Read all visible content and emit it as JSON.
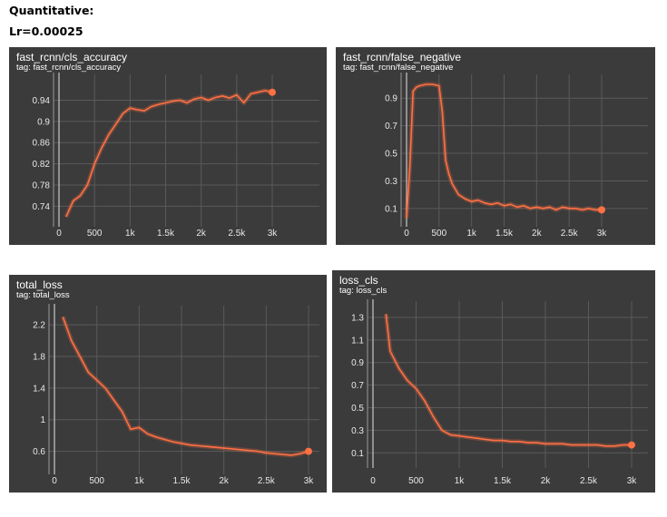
{
  "page": {
    "heading": "Quantitative:",
    "subheading": "Lr=0.00025"
  },
  "chart_data": [
    {
      "type": "line",
      "title": "fast_rcnn/cls_accuracy",
      "tag": "tag: fast_rcnn/cls_accuracy",
      "xlim": [
        0,
        3000
      ],
      "ylim": [
        0.715,
        0.975
      ],
      "x_ticks": [
        0,
        500,
        1000,
        1500,
        2000,
        2500,
        3000
      ],
      "x_tick_labels": [
        "0",
        "500",
        "1k",
        "1.5k",
        "2k",
        "2.5k",
        "3k"
      ],
      "y_ticks": [
        0.74,
        0.78,
        0.82,
        0.86,
        0.9,
        0.94
      ],
      "y_tick_labels": [
        "0.74",
        "0.78",
        "0.82",
        "0.86",
        "0.9",
        "0.94"
      ],
      "grid": true,
      "line_color": "#ff7043",
      "x": [
        100,
        200,
        300,
        400,
        500,
        600,
        700,
        800,
        900,
        1000,
        1100,
        1200,
        1300,
        1400,
        1500,
        1600,
        1700,
        1800,
        1900,
        2000,
        2100,
        2200,
        2300,
        2400,
        2500,
        2600,
        2700,
        2800,
        2900,
        3000
      ],
      "y": [
        0.72,
        0.75,
        0.76,
        0.78,
        0.82,
        0.85,
        0.875,
        0.895,
        0.915,
        0.925,
        0.922,
        0.92,
        0.928,
        0.932,
        0.935,
        0.938,
        0.94,
        0.935,
        0.942,
        0.945,
        0.94,
        0.945,
        0.948,
        0.944,
        0.95,
        0.935,
        0.952,
        0.955,
        0.958,
        0.955
      ]
    },
    {
      "type": "line",
      "title": "fast_rcnn/false_negative",
      "tag": "tag: fast_rcnn/false_negative",
      "xlim": [
        0,
        3000
      ],
      "ylim": [
        0.02,
        1.02
      ],
      "x_ticks": [
        0,
        500,
        1000,
        1500,
        2000,
        2500,
        3000
      ],
      "x_tick_labels": [
        "0",
        "500",
        "1k",
        "1.5k",
        "2k",
        "2.5k",
        "3k"
      ],
      "y_ticks": [
        0.1,
        0.3,
        0.5,
        0.7,
        0.9
      ],
      "y_tick_labels": [
        "0.1",
        "0.3",
        "0.5",
        "0.7",
        "0.9"
      ],
      "grid": true,
      "line_color": "#ff7043",
      "x": [
        0,
        50,
        100,
        150,
        200,
        300,
        400,
        500,
        550,
        600,
        650,
        700,
        800,
        900,
        1000,
        1100,
        1200,
        1300,
        1400,
        1500,
        1600,
        1700,
        1800,
        1900,
        2000,
        2100,
        2200,
        2300,
        2400,
        2500,
        2600,
        2700,
        2800,
        2900,
        3000
      ],
      "y": [
        0.03,
        0.4,
        0.95,
        0.98,
        0.99,
        1.0,
        1.0,
        0.99,
        0.8,
        0.45,
        0.35,
        0.28,
        0.2,
        0.17,
        0.15,
        0.16,
        0.14,
        0.13,
        0.14,
        0.12,
        0.13,
        0.11,
        0.12,
        0.1,
        0.11,
        0.1,
        0.11,
        0.09,
        0.11,
        0.1,
        0.1,
        0.09,
        0.1,
        0.09,
        0.09
      ]
    },
    {
      "type": "line",
      "title": "total_loss",
      "tag": "tag: total_loss",
      "xlim": [
        0,
        3000
      ],
      "ylim": [
        0.4,
        2.35
      ],
      "x_ticks": [
        0,
        500,
        1000,
        1500,
        2000,
        2500,
        3000
      ],
      "x_tick_labels": [
        "0",
        "500",
        "1k",
        "1.5k",
        "2k",
        "2.5k",
        "3k"
      ],
      "y_ticks": [
        0.6,
        1,
        1.4,
        1.8,
        2.2
      ],
      "y_tick_labels": [
        "0.6",
        "1",
        "1.4",
        "1.8",
        "2.2"
      ],
      "grid": true,
      "line_color": "#ff7043",
      "x": [
        100,
        200,
        300,
        400,
        500,
        600,
        700,
        800,
        900,
        1000,
        1100,
        1200,
        1300,
        1400,
        1500,
        1600,
        1700,
        1800,
        1900,
        2000,
        2100,
        2200,
        2300,
        2400,
        2500,
        2600,
        2700,
        2800,
        2900,
        3000
      ],
      "y": [
        2.3,
        2.0,
        1.8,
        1.6,
        1.5,
        1.4,
        1.25,
        1.1,
        0.88,
        0.9,
        0.82,
        0.78,
        0.75,
        0.72,
        0.7,
        0.68,
        0.67,
        0.66,
        0.65,
        0.64,
        0.63,
        0.62,
        0.61,
        0.6,
        0.58,
        0.57,
        0.56,
        0.55,
        0.57,
        0.6
      ]
    },
    {
      "type": "line",
      "title": "loss_cls",
      "tag": "tag: loss_cls",
      "xlim": [
        0,
        3000
      ],
      "ylim": [
        0.03,
        1.38
      ],
      "x_ticks": [
        0,
        500,
        1000,
        1500,
        2000,
        2500,
        3000
      ],
      "x_tick_labels": [
        "0",
        "500",
        "1k",
        "1.5k",
        "2k",
        "2.5k",
        "3k"
      ],
      "y_ticks": [
        0.1,
        0.3,
        0.5,
        0.7,
        0.9,
        1.1,
        1.3
      ],
      "y_tick_labels": [
        "0.1",
        "0.3",
        "0.5",
        "0.7",
        "0.9",
        "1.1",
        "1.3"
      ],
      "grid": true,
      "line_color": "#ff7043",
      "x": [
        150,
        200,
        300,
        400,
        500,
        600,
        700,
        800,
        900,
        1000,
        1100,
        1200,
        1300,
        1400,
        1500,
        1600,
        1700,
        1800,
        1900,
        2000,
        2100,
        2200,
        2300,
        2400,
        2500,
        2600,
        2700,
        2800,
        2900,
        3000
      ],
      "y": [
        1.33,
        1.0,
        0.85,
        0.74,
        0.67,
        0.56,
        0.42,
        0.3,
        0.26,
        0.25,
        0.24,
        0.23,
        0.22,
        0.21,
        0.21,
        0.2,
        0.2,
        0.19,
        0.19,
        0.18,
        0.18,
        0.18,
        0.17,
        0.17,
        0.17,
        0.17,
        0.16,
        0.16,
        0.17,
        0.17
      ]
    }
  ]
}
